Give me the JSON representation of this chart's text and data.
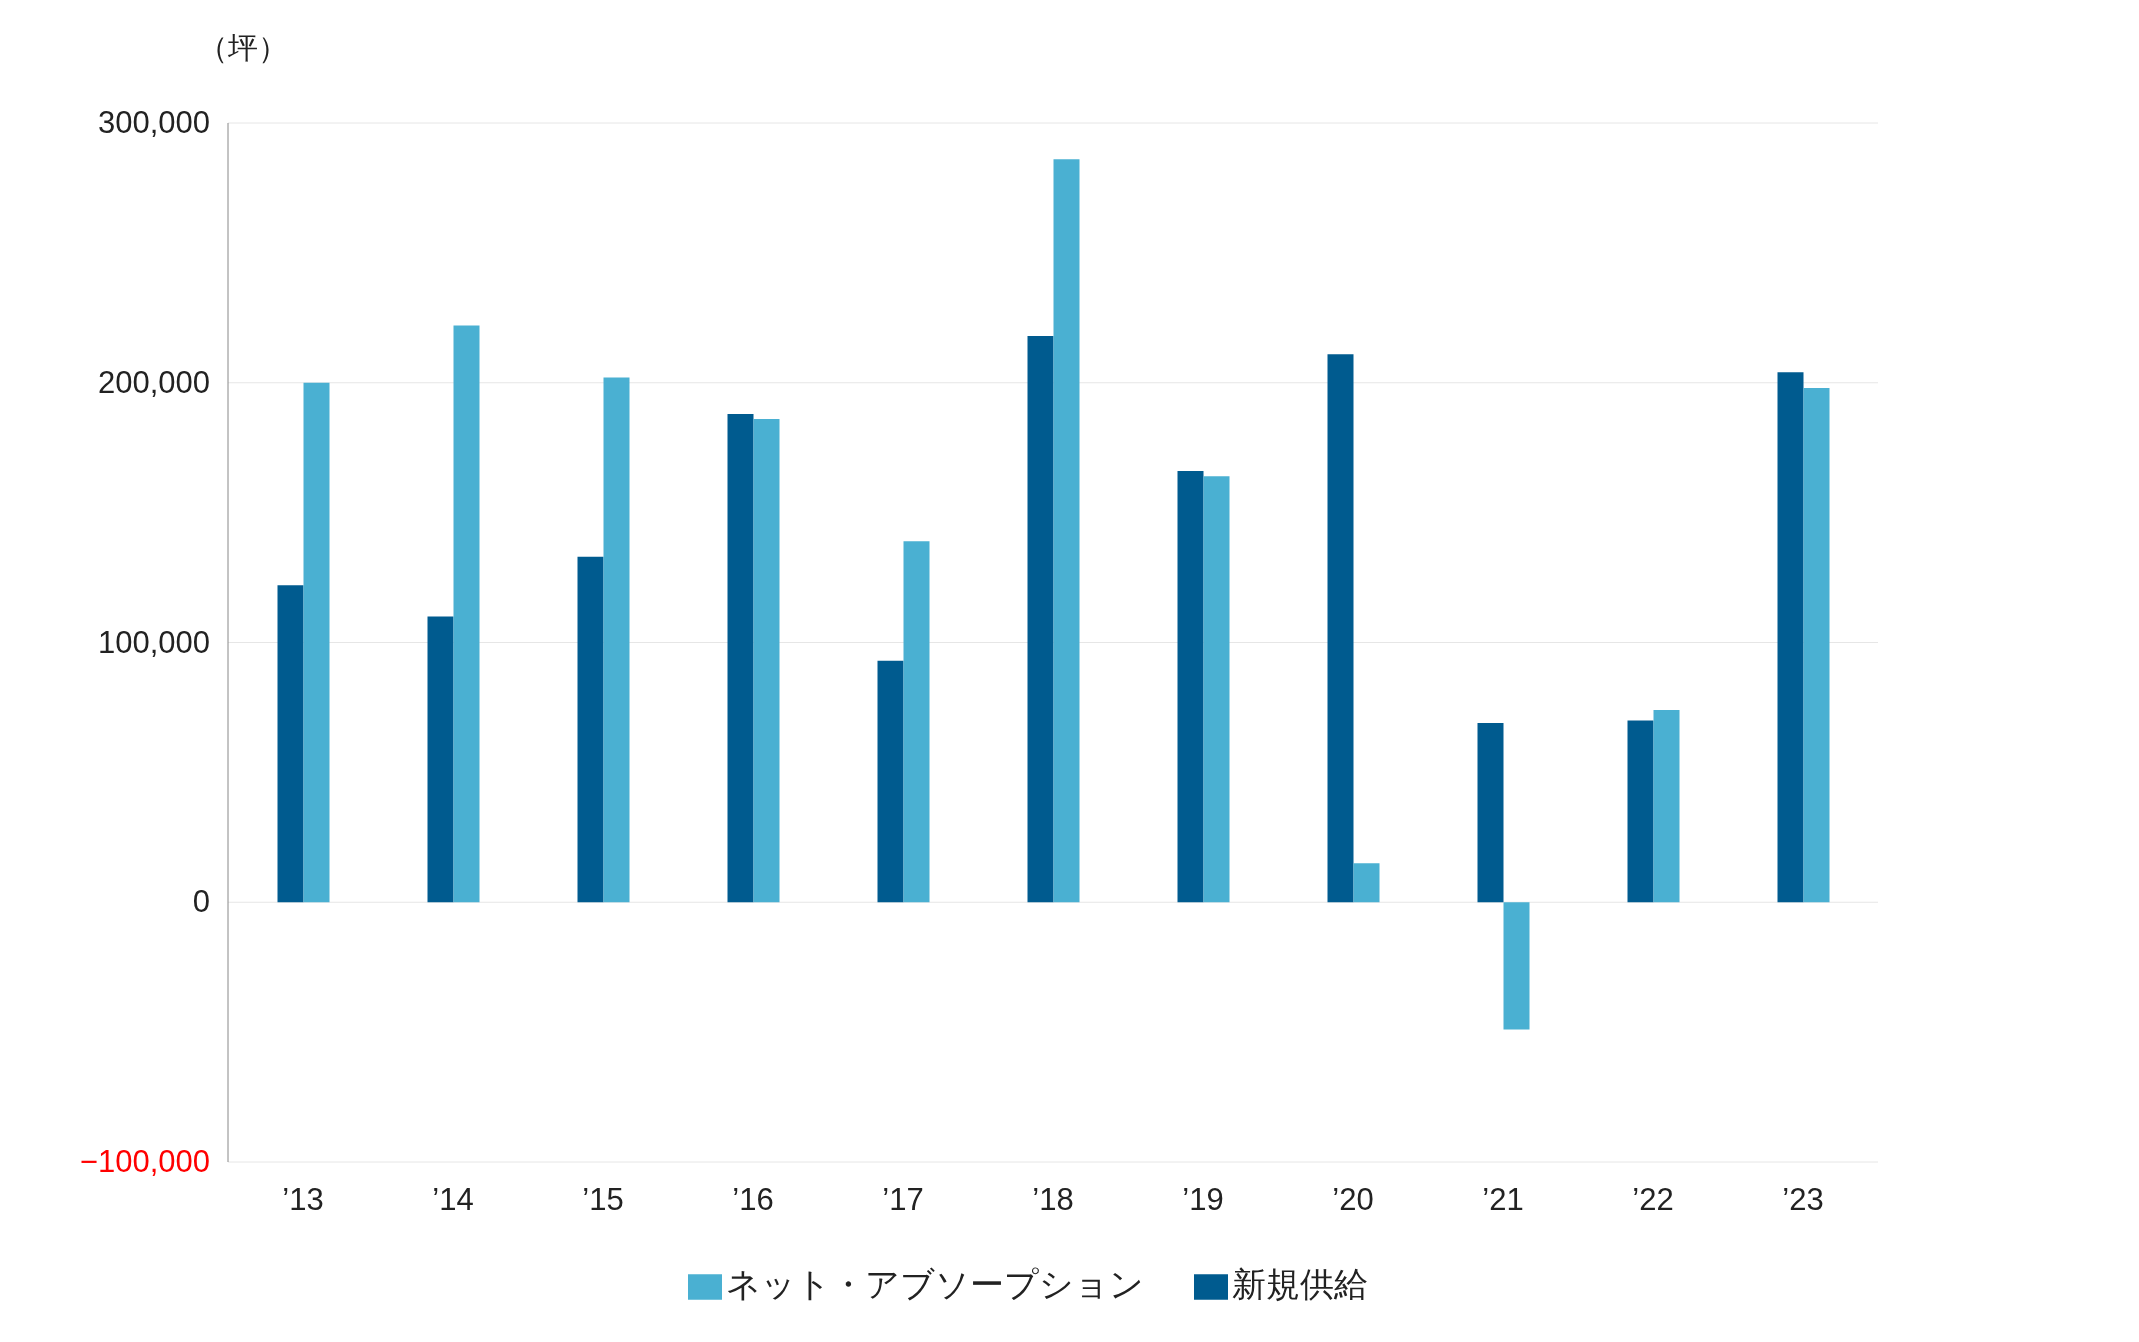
{
  "chart_data": {
    "type": "bar",
    "ylabel": "（坪）",
    "categories": [
      "’13",
      "’14",
      "’15",
      "’16",
      "’17",
      "’18",
      "’19",
      "’20",
      "’21",
      "’22",
      "’23"
    ],
    "series": [
      {
        "name": "新規供給",
        "color": "#005b8f",
        "values": [
          122000,
          110000,
          133000,
          188000,
          93000,
          218000,
          166000,
          211000,
          69000,
          70000,
          204000
        ]
      },
      {
        "name": "ネット・アブソープション",
        "color": "#4ab0d2",
        "values": [
          200000,
          222000,
          202000,
          186000,
          139000,
          286000,
          164000,
          15000,
          -49000,
          74000,
          198000
        ]
      }
    ],
    "ylim": [
      -100000,
      300000
    ],
    "yticks": [
      {
        "value": -100000,
        "label": "−100,000"
      },
      0,
      {
        "value": 100000,
        "label": "100,000"
      },
      {
        "value": 200000,
        "label": "200,000"
      },
      {
        "value": 300000,
        "label": "300,000"
      }
    ],
    "grid": "y",
    "legend": "bottom"
  }
}
